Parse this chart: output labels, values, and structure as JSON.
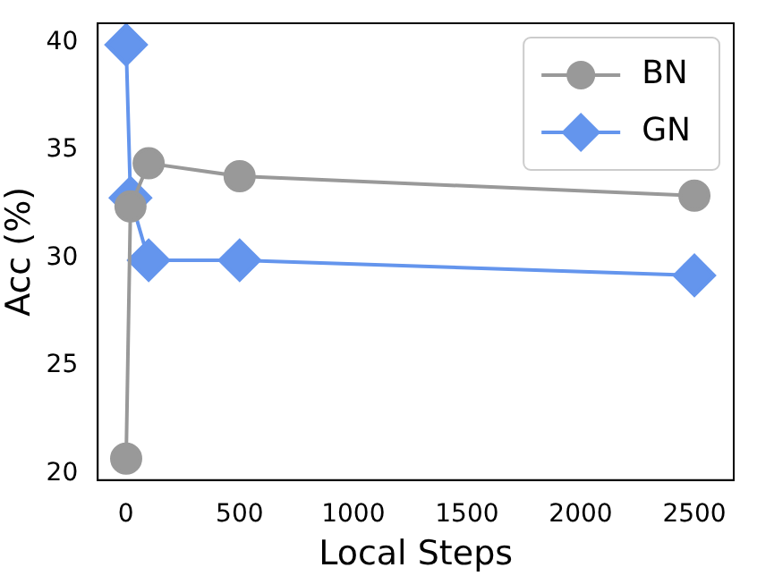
{
  "chart_data": {
    "type": "line",
    "xlabel": "Local Steps",
    "ylabel": "Acc (%)",
    "x": [
      1,
      20,
      100,
      500,
      2500
    ],
    "series": [
      {
        "name": "BN",
        "color": "#999999",
        "marker": "circle",
        "values": [
          20.7,
          32.4,
          34.4,
          33.8,
          32.9
        ]
      },
      {
        "name": "GN",
        "color": "#6495ed",
        "marker": "diamond",
        "values": [
          39.9,
          32.8,
          29.9,
          29.9,
          29.2
        ]
      }
    ],
    "xlim": [
      -124,
      2673
    ],
    "xticks": [
      0,
      500,
      1000,
      1500,
      2000,
      2500
    ],
    "ylim": [
      19.7,
      40.9
    ],
    "yticks": [
      20,
      25,
      30,
      35,
      40
    ],
    "grid": false,
    "legend": "top right",
    "line_style": "solid"
  }
}
